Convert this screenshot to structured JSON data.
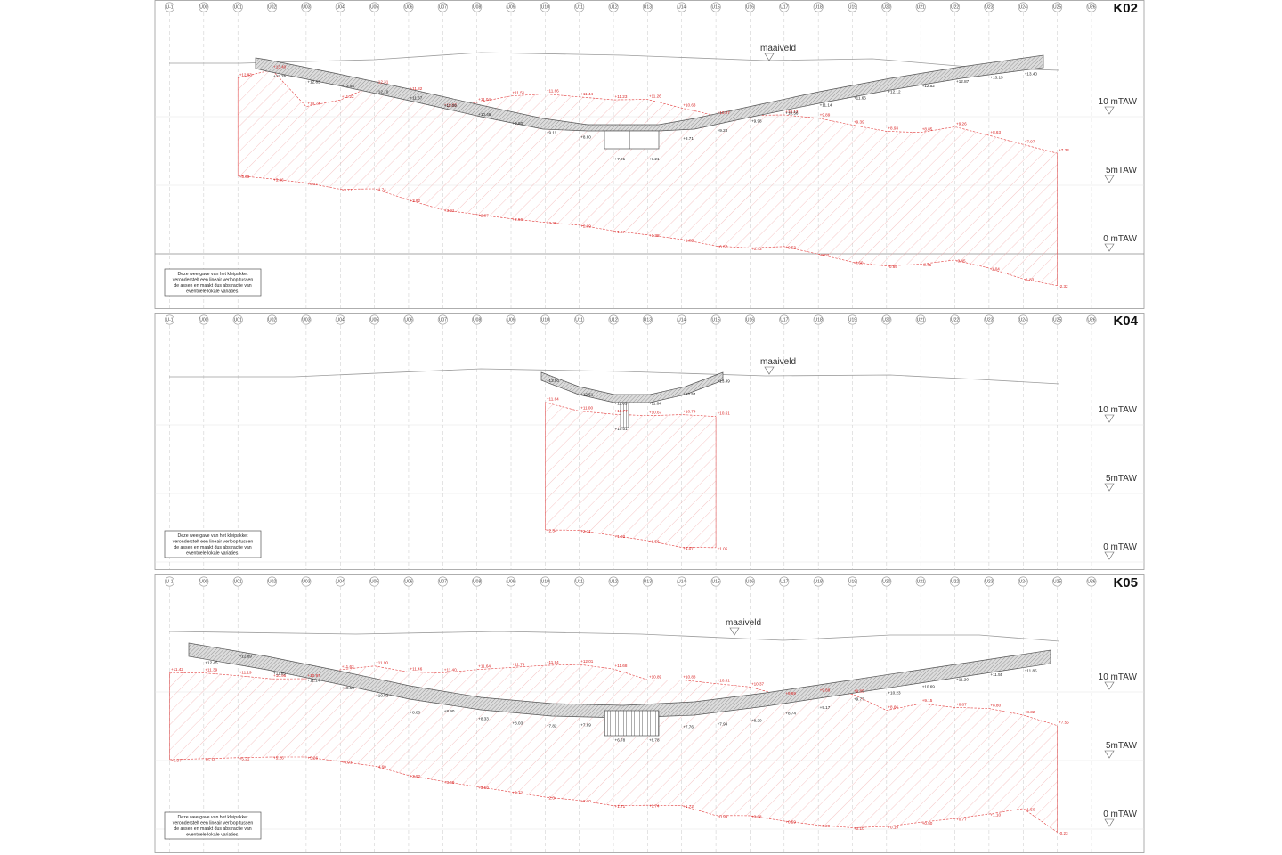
{
  "axes": [
    "U-1",
    "U00",
    "U01",
    "U02",
    "U03",
    "U04",
    "U05",
    "U06",
    "U07",
    "U08",
    "U09",
    "U10",
    "U11",
    "U12",
    "U13",
    "U14",
    "U15",
    "U16",
    "U17",
    "U18",
    "U19",
    "U20",
    "U21",
    "U22",
    "U23",
    "U24",
    "U25",
    "U26"
  ],
  "ground_label": "maaiveld",
  "level_labels": [
    "10 mTAW",
    "5mTAW",
    "0 mTAW"
  ],
  "note_lines": [
    "Deze weergave van het  kleipakket",
    "veronderstelt een lineair verloop tussen",
    "de assen en maakt dus abstractie van",
    "eventuele lokale variaties."
  ],
  "colors": {
    "clay": "#e23b3b",
    "deck": "#555555",
    "grid": "#c8c8c8"
  },
  "sections": [
    {
      "title": "K02",
      "deck_levels": [
        {
          "axis": "U02",
          "v": "+13.25"
        },
        {
          "axis": "U03",
          "v": "+12.83"
        },
        {
          "axis": "U04",
          "v": "+12.54"
        },
        {
          "axis": "U05",
          "v": "+12.10"
        },
        {
          "axis": "U06",
          "v": "+11.67"
        },
        {
          "axis": "U07",
          "v": "+11.09"
        },
        {
          "axis": "U08",
          "v": "+10.46"
        },
        {
          "axis": "U09",
          "v": "+9.80"
        },
        {
          "axis": "U10",
          "v": "+9.11"
        },
        {
          "axis": "U11",
          "v": "+8.80"
        },
        {
          "axis": "U12",
          "v": "+7.21"
        },
        {
          "axis": "U13",
          "v": "+7.21"
        },
        {
          "axis": "U14",
          "v": "+8.71"
        },
        {
          "axis": "U15",
          "v": "+9.28"
        },
        {
          "axis": "U16",
          "v": "+9.98"
        },
        {
          "axis": "U17",
          "v": "+10.56"
        },
        {
          "axis": "U18",
          "v": "+11.14"
        },
        {
          "axis": "U19",
          "v": "+11.66"
        },
        {
          "axis": "U20",
          "v": "+12.12"
        },
        {
          "axis": "U21",
          "v": "+12.52"
        },
        {
          "axis": "U22",
          "v": "+12.87"
        },
        {
          "axis": "U23",
          "v": "+13.15"
        },
        {
          "axis": "U24",
          "v": "+13.40"
        }
      ],
      "clay_top": [
        {
          "axis": "U01",
          "v": "+12.83"
        },
        {
          "axis": "U02",
          "v": "+13.40"
        },
        {
          "axis": "U03",
          "v": "+10.74"
        },
        {
          "axis": "U04",
          "v": "+11.22"
        },
        {
          "axis": "U05",
          "v": "+12.31"
        },
        {
          "axis": "U06",
          "v": "+11.82"
        },
        {
          "axis": "U07",
          "v": "+10.63"
        },
        {
          "axis": "U08",
          "v": "+11.04"
        },
        {
          "axis": "U09",
          "v": "+11.51"
        },
        {
          "axis": "U10",
          "v": "+11.66"
        },
        {
          "axis": "U11",
          "v": "+11.44"
        },
        {
          "axis": "U12",
          "v": "+11.23"
        },
        {
          "axis": "U13",
          "v": "+11.26"
        },
        {
          "axis": "U14",
          "v": "+10.63"
        },
        {
          "axis": "U15",
          "v": "+10.07"
        },
        {
          "axis": "U17",
          "v": "+10.13"
        },
        {
          "axis": "U18",
          "v": "+9.89"
        },
        {
          "axis": "U19",
          "v": "+9.39"
        },
        {
          "axis": "U20",
          "v": "+8.93"
        },
        {
          "axis": "U21",
          "v": "+8.85"
        },
        {
          "axis": "U22",
          "v": "+9.26"
        },
        {
          "axis": "U23",
          "v": "+8.63"
        },
        {
          "axis": "U24",
          "v": "+7.97"
        },
        {
          "axis": "U25",
          "v": "+7.33"
        }
      ],
      "clay_bottom": [
        {
          "axis": "U01",
          "v": "+5.69"
        },
        {
          "axis": "U02",
          "v": "+5.46"
        },
        {
          "axis": "U03",
          "v": "+5.17"
        },
        {
          "axis": "U04",
          "v": "+4.71"
        },
        {
          "axis": "U05",
          "v": "+4.74"
        },
        {
          "axis": "U06",
          "v": "+3.92"
        },
        {
          "axis": "U07",
          "v": "+3.21"
        },
        {
          "axis": "U08",
          "v": "+2.87"
        },
        {
          "axis": "U09",
          "v": "+2.56"
        },
        {
          "axis": "U10",
          "v": "+2.29"
        },
        {
          "axis": "U11",
          "v": "+2.09"
        },
        {
          "axis": "U12",
          "v": "+1.67"
        },
        {
          "axis": "U13",
          "v": "+1.38"
        },
        {
          "axis": "U14",
          "v": "+1.05"
        },
        {
          "axis": "U15",
          "v": "+0.57"
        },
        {
          "axis": "U16",
          "v": "+0.43"
        },
        {
          "axis": "U17",
          "v": "+0.53"
        },
        {
          "axis": "U18",
          "v": "-0.02"
        },
        {
          "axis": "U19",
          "v": "-0.60"
        },
        {
          "axis": "U20",
          "v": "-0.89"
        },
        {
          "axis": "U21",
          "v": "-0.75"
        },
        {
          "axis": "U22",
          "v": "-0.45"
        },
        {
          "axis": "U23",
          "v": "-1.04"
        },
        {
          "axis": "U24",
          "v": "-1.83"
        },
        {
          "axis": "U25",
          "v": "-2.32"
        }
      ]
    },
    {
      "title": "K04",
      "deck_levels": [
        {
          "axis": "U10",
          "v": "+13.50"
        },
        {
          "axis": "U11",
          "v": "+12.51"
        },
        {
          "axis": "U12",
          "v": "+11.85"
        },
        {
          "axis": "U13",
          "v": "+11.84"
        },
        {
          "axis": "U14",
          "v": "+12.54"
        },
        {
          "axis": "U15",
          "v": "+13.49"
        },
        {
          "axis": "U12b",
          "v": "+10.01"
        }
      ],
      "clay_top": [
        {
          "axis": "U10",
          "v": "+11.64"
        },
        {
          "axis": "U11",
          "v": "+11.00"
        },
        {
          "axis": "U12",
          "v": "+10.77"
        },
        {
          "axis": "U13",
          "v": "+10.67"
        },
        {
          "axis": "U14",
          "v": "+10.74"
        },
        {
          "axis": "U15",
          "v": "+10.61"
        }
      ],
      "clay_bottom": [
        {
          "axis": "U10",
          "v": "+2.34"
        },
        {
          "axis": "U11",
          "v": "+2.31"
        },
        {
          "axis": "U12",
          "v": "+1.92"
        },
        {
          "axis": "U13",
          "v": "+1.56"
        },
        {
          "axis": "U14",
          "v": "+1.07"
        },
        {
          "axis": "U15",
          "v": "+1.05"
        }
      ]
    },
    {
      "title": "K05",
      "deck_levels": [
        {
          "axis": "U00",
          "v": "+12.45"
        },
        {
          "axis": "U01",
          "v": "+12.89"
        },
        {
          "axis": "U02",
          "v": "+11.65"
        },
        {
          "axis": "U03",
          "v": "+11.14"
        },
        {
          "axis": "U04",
          "v": "+10.59"
        },
        {
          "axis": "U05",
          "v": "+10.03"
        },
        {
          "axis": "U06",
          "v": "+8.80"
        },
        {
          "axis": "U07",
          "v": "+8.90"
        },
        {
          "axis": "U08",
          "v": "+8.33"
        },
        {
          "axis": "U09",
          "v": "+8.03"
        },
        {
          "axis": "U10",
          "v": "+7.82"
        },
        {
          "axis": "U11",
          "v": "+7.89"
        },
        {
          "axis": "U12",
          "v": "+6.78"
        },
        {
          "axis": "U13",
          "v": "+6.78"
        },
        {
          "axis": "U14",
          "v": "+7.76"
        },
        {
          "axis": "U15",
          "v": "+7.94"
        },
        {
          "axis": "U16",
          "v": "+8.20"
        },
        {
          "axis": "U17",
          "v": "+8.74"
        },
        {
          "axis": "U18",
          "v": "+9.17"
        },
        {
          "axis": "U19",
          "v": "+9.77"
        },
        {
          "axis": "U20",
          "v": "+10.23"
        },
        {
          "axis": "U21",
          "v": "+10.69"
        },
        {
          "axis": "U22",
          "v": "+11.20"
        },
        {
          "axis": "U23",
          "v": "+11.55"
        },
        {
          "axis": "U24",
          "v": "+11.85"
        }
      ],
      "clay_top": [
        {
          "axis": "U-1",
          "v": "+11.42"
        },
        {
          "axis": "U00",
          "v": "+11.39"
        },
        {
          "axis": "U01",
          "v": "+11.19"
        },
        {
          "axis": "U02",
          "v": "+10.96"
        },
        {
          "axis": "U03",
          "v": "+10.97"
        },
        {
          "axis": "U04",
          "v": "+11.63"
        },
        {
          "axis": "U05",
          "v": "+11.90"
        },
        {
          "axis": "U06",
          "v": "+11.46"
        },
        {
          "axis": "U07",
          "v": "+11.40"
        },
        {
          "axis": "U08",
          "v": "+11.64"
        },
        {
          "axis": "U09",
          "v": "+11.79"
        },
        {
          "axis": "U10",
          "v": "+11.94"
        },
        {
          "axis": "U11",
          "v": "+12.01"
        },
        {
          "axis": "U12",
          "v": "+11.68"
        },
        {
          "axis": "U13",
          "v": "+10.89"
        },
        {
          "axis": "U14",
          "v": "+10.88"
        },
        {
          "axis": "U15",
          "v": "+10.61"
        },
        {
          "axis": "U16",
          "v": "+10.37"
        },
        {
          "axis": "U17",
          "v": "+9.69"
        },
        {
          "axis": "U18",
          "v": "+9.89"
        },
        {
          "axis": "U19",
          "v": "+9.85"
        },
        {
          "axis": "U20",
          "v": "+8.66"
        },
        {
          "axis": "U21",
          "v": "+9.15"
        },
        {
          "axis": "U22",
          "v": "+8.87"
        },
        {
          "axis": "U23",
          "v": "+8.80"
        },
        {
          "axis": "U24",
          "v": "+8.32"
        },
        {
          "axis": "U25",
          "v": "+7.55"
        }
      ],
      "clay_bottom": [
        {
          "axis": "U-1",
          "v": "+5.07"
        },
        {
          "axis": "U00",
          "v": "+5.14"
        },
        {
          "axis": "U01",
          "v": "+5.21"
        },
        {
          "axis": "U02",
          "v": "+5.26"
        },
        {
          "axis": "U03",
          "v": "+5.26"
        },
        {
          "axis": "U04",
          "v": "+4.93"
        },
        {
          "axis": "U05",
          "v": "+4.60"
        },
        {
          "axis": "U06",
          "v": "+3.92"
        },
        {
          "axis": "U07",
          "v": "+3.49"
        },
        {
          "axis": "U08",
          "v": "+3.10"
        },
        {
          "axis": "U09",
          "v": "+2.72"
        },
        {
          "axis": "U10",
          "v": "+2.34"
        },
        {
          "axis": "U11",
          "v": "+2.10"
        },
        {
          "axis": "U12",
          "v": "+1.71"
        },
        {
          "axis": "U13",
          "v": "+1.74"
        },
        {
          "axis": "U14",
          "v": "+1.72"
        },
        {
          "axis": "U15",
          "v": "+0.99"
        },
        {
          "axis": "U16",
          "v": "+0.98"
        },
        {
          "axis": "U17",
          "v": "+0.59"
        },
        {
          "axis": "U18",
          "v": "+0.29"
        },
        {
          "axis": "U19",
          "v": "+0.10"
        },
        {
          "axis": "U20",
          "v": "+0.19"
        },
        {
          "axis": "U21",
          "v": "+0.50"
        },
        {
          "axis": "U22",
          "v": "+0.77"
        },
        {
          "axis": "U23",
          "v": "+1.10"
        },
        {
          "axis": "U24",
          "v": "+1.50"
        },
        {
          "axis": "U25",
          "v": "-0.23"
        }
      ]
    }
  ]
}
